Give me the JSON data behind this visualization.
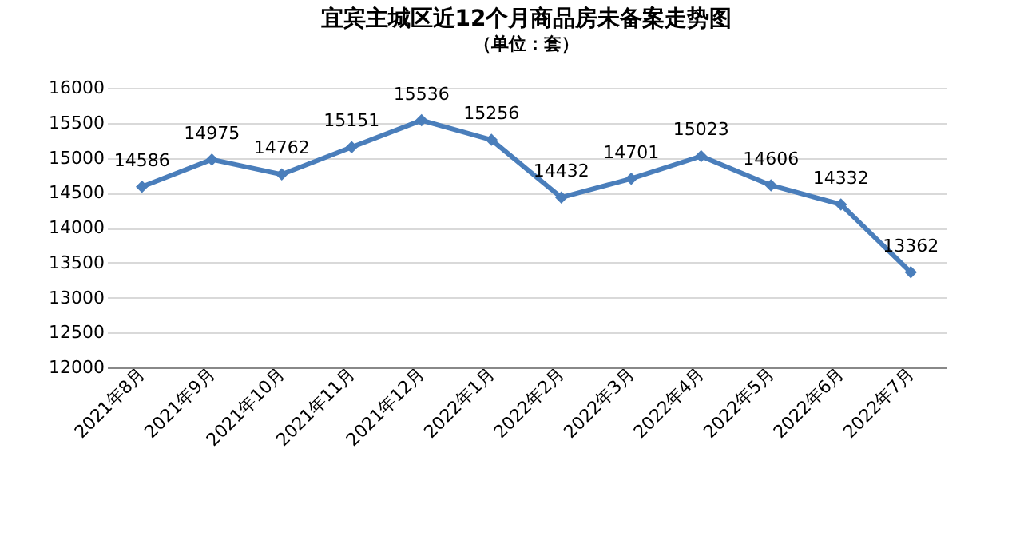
{
  "chart_data": {
    "type": "line",
    "title": "宜宾主城区近12个月商品房未备案走势图",
    "subtitle": "（单位：套）",
    "categories": [
      "2021年8月",
      "2021年9月",
      "2021年10月",
      "2021年11月",
      "2021年12月",
      "2022年1月",
      "2022年2月",
      "2022年3月",
      "2022年4月",
      "2022年5月",
      "2022年6月",
      "2022年7月"
    ],
    "series": [
      {
        "color": "#4a7ebb",
        "values": [
          14586,
          14975,
          14762,
          15151,
          15536,
          15256,
          14432,
          14701,
          15023,
          14606,
          14332,
          13362
        ]
      }
    ],
    "ylim": [
      12000,
      16000
    ],
    "yticks": [
      12000,
      12500,
      13000,
      13500,
      14000,
      14500,
      15000,
      15500,
      16000
    ],
    "grid": "y",
    "marker": "diamond",
    "line_style": "solid",
    "data_labels": true
  }
}
